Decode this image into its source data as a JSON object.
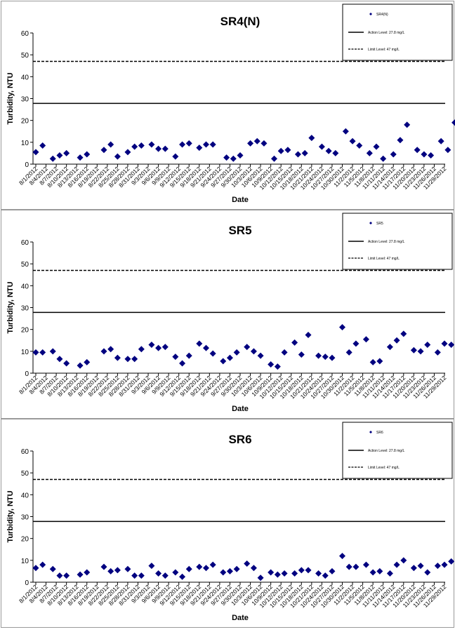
{
  "chart_data": [
    {
      "type": "scatter",
      "title": "SR4(N)",
      "xlabel": "Date",
      "ylabel": "Turbidity, NTU",
      "ylim": [
        0,
        60
      ],
      "yticks": [
        "0",
        "10",
        "20",
        "30",
        "40",
        "50",
        "60"
      ],
      "grid": false,
      "legend_position": "top-right",
      "x_tick_labels": [
        "8/1/2012",
        "8/4/2012",
        "8/7/2012",
        "8/10/2012",
        "8/13/2012",
        "8/16/2012",
        "8/19/2012",
        "8/22/2012",
        "8/25/2012",
        "8/28/2012",
        "8/31/2012",
        "9/3/2012",
        "9/6/2012",
        "9/9/2012",
        "9/12/2012",
        "9/15/2012",
        "9/18/2012",
        "9/21/2012",
        "9/24/2012",
        "9/27/2012",
        "9/30/2012",
        "10/3/2012",
        "10/6/2012",
        "10/9/2012",
        "10/12/2012",
        "10/15/2012",
        "10/18/2012",
        "10/21/2012",
        "10/24/2012",
        "10/27/2012",
        "10/30/2012",
        "11/2/2012",
        "11/5/2012",
        "11/8/2012",
        "11/11/2012",
        "11/14/2012",
        "11/17/2012",
        "11/20/2012",
        "11/23/2012",
        "11/26/2012",
        "11/29/2012"
      ],
      "series": [
        {
          "name": "SR4(N)",
          "color": "#000080",
          "x": [
            "8/1/2012",
            "8/3/2012",
            "8/6/2012",
            "8/8/2012",
            "8/10/2012",
            "8/14/2012",
            "8/16/2012",
            "8/21/2012",
            "8/23/2012",
            "8/25/2012",
            "8/28/2012",
            "8/30/2012",
            "9/1/2012",
            "9/4/2012",
            "9/6/2012",
            "9/8/2012",
            "9/11/2012",
            "9/13/2012",
            "9/15/2012",
            "9/18/2012",
            "9/20/2012",
            "9/22/2012",
            "9/26/2012",
            "9/28/2012",
            "9/30/2012",
            "10/3/2012",
            "10/5/2012",
            "10/7/2012",
            "10/10/2012",
            "10/12/2012",
            "10/14/2012",
            "10/17/2012",
            "10/19/2012",
            "10/21/2012",
            "10/24/2012",
            "10/26/2012",
            "10/28/2012",
            "10/31/2012",
            "11/2/2012",
            "11/4/2012",
            "11/7/2012",
            "11/9/2012",
            "11/11/2012",
            "11/14/2012",
            "11/16/2012",
            "11/18/2012",
            "11/21/2012",
            "11/23/2012",
            "11/25/2012",
            "11/28/2012",
            "11/30/2012",
            "12/2/2012"
          ],
          "y": [
            5.5,
            8.5,
            2.5,
            4,
            5,
            3,
            4.5,
            6.5,
            9,
            3.5,
            5.5,
            8,
            8.5,
            9,
            7,
            7,
            3.5,
            9,
            9.5,
            7.5,
            9,
            9,
            3,
            2.5,
            4,
            9.5,
            10.5,
            9.5,
            2.5,
            6,
            6.5,
            4.5,
            5,
            12,
            8,
            6,
            5,
            15,
            10.5,
            8.5,
            5,
            8,
            2.5,
            4.5,
            11,
            18,
            6.5,
            4.5,
            4,
            10.5,
            6.5,
            19
          ]
        }
      ],
      "reference_lines": [
        {
          "name": "Action Level: 27.8 mg/L",
          "y": 27.8,
          "style": "solid"
        },
        {
          "name": "Limit Level: 47 mg/L",
          "y": 47,
          "style": "dashed"
        }
      ]
    },
    {
      "type": "scatter",
      "title": "SR5",
      "xlabel": "Date",
      "ylabel": "Turbidity, NTU",
      "ylim": [
        0,
        60
      ],
      "yticks": [
        "0",
        "10",
        "20",
        "30",
        "40",
        "50",
        "60"
      ],
      "grid": false,
      "legend_position": "top-right",
      "x_tick_labels": [
        "8/1/2012",
        "8/4/2012",
        "8/7/2012",
        "8/10/2012",
        "8/13/2012",
        "8/16/2012",
        "8/19/2012",
        "8/22/2012",
        "8/25/2012",
        "8/28/2012",
        "8/31/2012",
        "9/3/2012",
        "9/6/2012",
        "9/9/2012",
        "9/12/2012",
        "9/15/2012",
        "9/18/2012",
        "9/21/2012",
        "9/24/2012",
        "9/27/2012",
        "9/30/2012",
        "10/3/2012",
        "10/6/2012",
        "10/9/2012",
        "10/12/2012",
        "10/15/2012",
        "10/18/2012",
        "10/21/2012",
        "10/24/2012",
        "10/27/2012",
        "10/30/2012",
        "11/2/2012",
        "11/5/2012",
        "11/8/2012",
        "11/11/2012",
        "11/14/2012",
        "11/17/2012",
        "11/20/2012",
        "11/23/2012",
        "11/26/2012",
        "11/29/2012"
      ],
      "series": [
        {
          "name": "SR5",
          "color": "#000080",
          "x": [
            "8/1/2012",
            "8/3/2012",
            "8/6/2012",
            "8/8/2012",
            "8/10/2012",
            "8/14/2012",
            "8/16/2012",
            "8/21/2012",
            "8/23/2012",
            "8/25/2012",
            "8/28/2012",
            "8/30/2012",
            "9/1/2012",
            "9/4/2012",
            "9/6/2012",
            "9/8/2012",
            "9/11/2012",
            "9/13/2012",
            "9/15/2012",
            "9/18/2012",
            "9/20/2012",
            "9/22/2012",
            "9/25/2012",
            "9/27/2012",
            "9/29/2012",
            "10/2/2012",
            "10/4/2012",
            "10/6/2012",
            "10/9/2012",
            "10/11/2012",
            "10/13/2012",
            "10/16/2012",
            "10/18/2012",
            "10/20/2012",
            "10/23/2012",
            "10/25/2012",
            "10/27/2012",
            "10/30/2012",
            "11/1/2012",
            "11/3/2012",
            "11/6/2012",
            "11/8/2012",
            "11/10/2012",
            "11/13/2012",
            "11/15/2012",
            "11/17/2012",
            "11/20/2012",
            "11/22/2012",
            "11/24/2012",
            "11/27/2012",
            "11/29/2012",
            "12/1/2012"
          ],
          "y": [
            9.5,
            9.5,
            10,
            6.5,
            4.5,
            3.5,
            5,
            10,
            11,
            7,
            6.5,
            6.5,
            11,
            13,
            11.5,
            12,
            7.5,
            4.5,
            8,
            13.5,
            11.5,
            9,
            5.5,
            7,
            9.5,
            12,
            10,
            8,
            4,
            3,
            9.5,
            14,
            8.5,
            17.5,
            8,
            7.5,
            7,
            21,
            9.5,
            13.5,
            15.5,
            5,
            5.5,
            12,
            15,
            18,
            10.5,
            10,
            13,
            9.5,
            13.5,
            13
          ]
        }
      ],
      "reference_lines": [
        {
          "name": "Action Level: 27.8 mg/L",
          "y": 27.8,
          "style": "solid"
        },
        {
          "name": "Limit Level: 47 mg/L",
          "y": 47,
          "style": "dashed"
        }
      ]
    },
    {
      "type": "scatter",
      "title": "SR6",
      "xlabel": "Date",
      "ylabel": "Turbidity, NTU",
      "ylim": [
        0,
        60
      ],
      "yticks": [
        "0",
        "10",
        "20",
        "30",
        "40",
        "50",
        "60"
      ],
      "grid": false,
      "legend_position": "top-right",
      "x_tick_labels": [
        "8/1/2012",
        "8/4/2012",
        "8/7/2012",
        "8/10/2012",
        "8/13/2012",
        "8/16/2012",
        "8/19/2012",
        "8/22/2012",
        "8/25/2012",
        "8/28/2012",
        "8/31/2012",
        "9/3/2012",
        "9/6/2012",
        "9/9/2012",
        "9/12/2012",
        "9/15/2012",
        "9/18/2012",
        "9/21/2012",
        "9/24/2012",
        "9/27/2012",
        "9/30/2012",
        "10/3/2012",
        "10/6/2012",
        "10/9/2012",
        "10/12/2012",
        "10/15/2012",
        "10/18/2012",
        "10/21/2012",
        "10/24/2012",
        "10/27/2012",
        "10/30/2012",
        "11/2/2012",
        "11/5/2012",
        "11/8/2012",
        "11/11/2012",
        "11/14/2012",
        "11/17/2012",
        "11/20/2012",
        "11/23/2012",
        "11/26/2012",
        "11/29/2012"
      ],
      "series": [
        {
          "name": "SR6",
          "color": "#000080",
          "x": [
            "8/1/2012",
            "8/3/2012",
            "8/6/2012",
            "8/8/2012",
            "8/10/2012",
            "8/14/2012",
            "8/16/2012",
            "8/21/2012",
            "8/23/2012",
            "8/25/2012",
            "8/28/2012",
            "8/30/2012",
            "9/1/2012",
            "9/4/2012",
            "9/6/2012",
            "9/8/2012",
            "9/11/2012",
            "9/13/2012",
            "9/15/2012",
            "9/18/2012",
            "9/20/2012",
            "9/22/2012",
            "9/25/2012",
            "9/27/2012",
            "9/29/2012",
            "10/2/2012",
            "10/4/2012",
            "10/6/2012",
            "10/9/2012",
            "10/11/2012",
            "10/13/2012",
            "10/16/2012",
            "10/18/2012",
            "10/20/2012",
            "10/23/2012",
            "10/25/2012",
            "10/27/2012",
            "10/30/2012",
            "11/1/2012",
            "11/3/2012",
            "11/6/2012",
            "11/8/2012",
            "11/10/2012",
            "11/13/2012",
            "11/15/2012",
            "11/17/2012",
            "11/20/2012",
            "11/22/2012",
            "11/24/2012",
            "11/27/2012",
            "11/29/2012",
            "12/1/2012"
          ],
          "y": [
            6.5,
            8,
            6,
            3,
            3,
            3.5,
            4.5,
            7,
            5,
            5.5,
            6,
            3,
            3,
            7.5,
            4,
            3,
            4.5,
            2.5,
            6,
            7,
            6.5,
            8,
            4.5,
            5,
            6,
            8.5,
            6.5,
            2,
            4.5,
            3.5,
            4,
            4,
            5.5,
            5.5,
            4,
            3,
            5,
            12,
            7,
            7,
            8,
            4.5,
            5,
            4,
            8,
            10,
            6.5,
            7.5,
            4.5,
            7.5,
            8,
            9.5
          ]
        }
      ],
      "reference_lines": [
        {
          "name": "Action Level: 27.8 mg/L",
          "y": 27.8,
          "style": "solid"
        },
        {
          "name": "Limit Level: 47 mg/L",
          "y": 47,
          "style": "dashed"
        }
      ]
    }
  ]
}
